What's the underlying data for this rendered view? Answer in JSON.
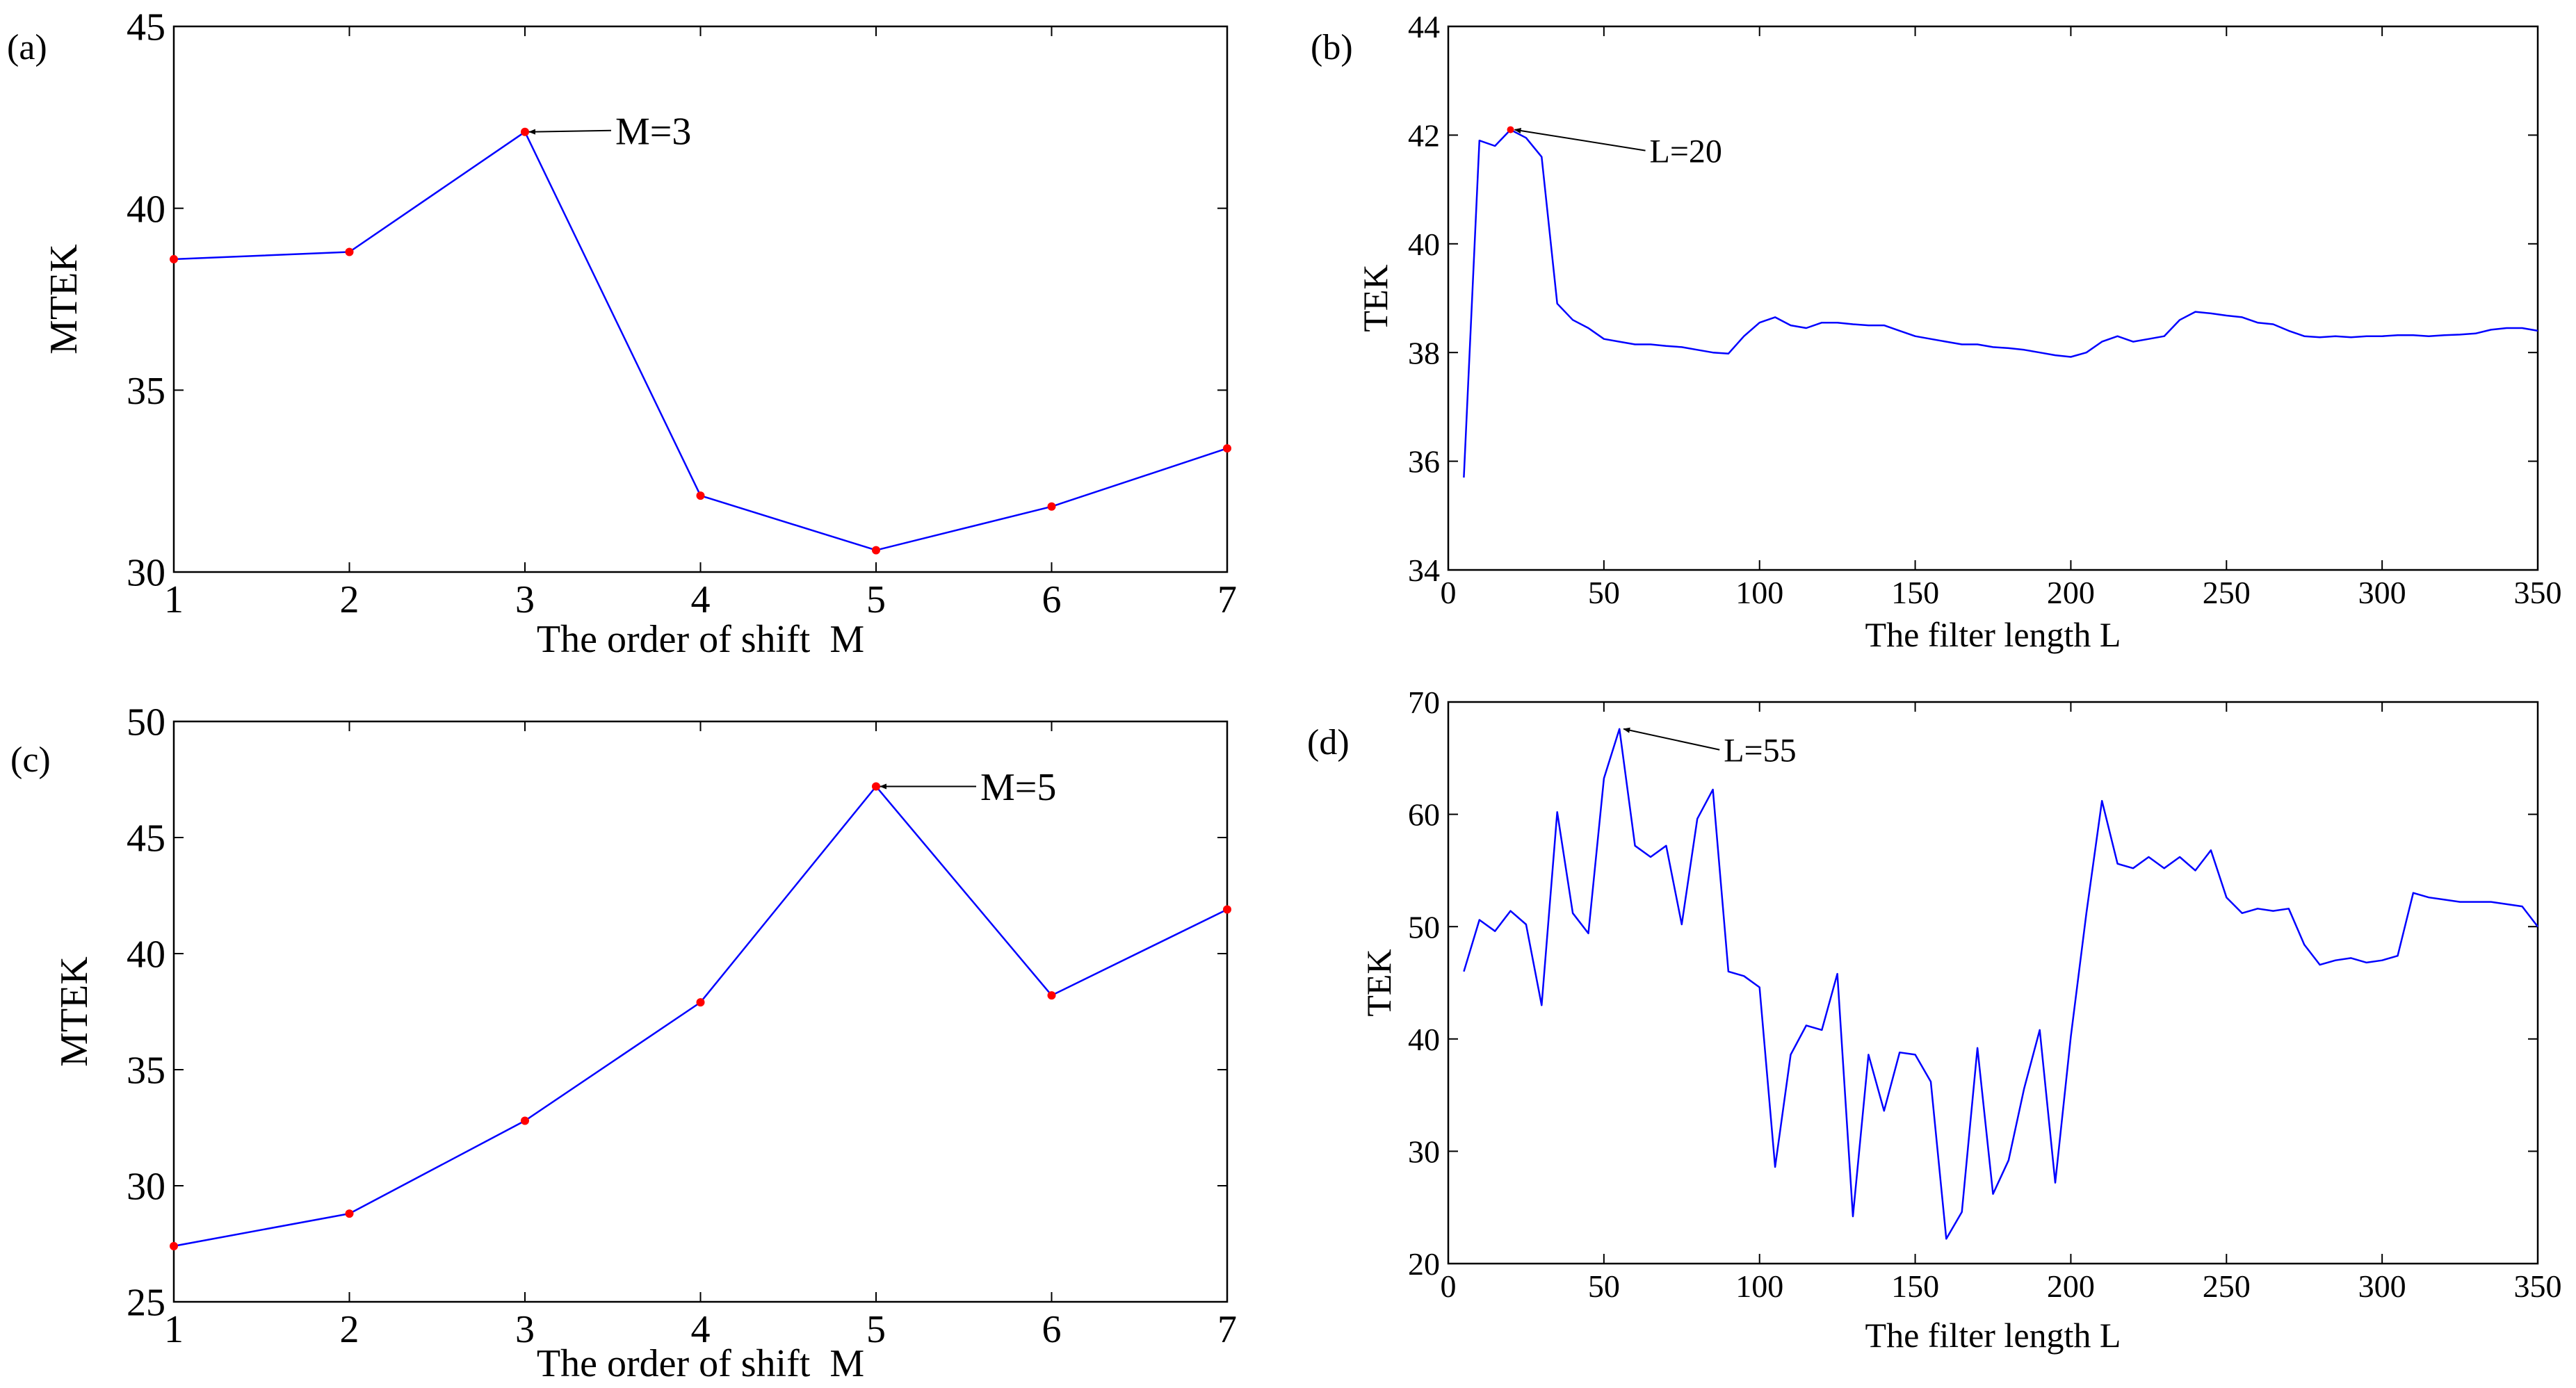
{
  "figure": {
    "panels": [
      {
        "id": "a",
        "label": "(a)"
      },
      {
        "id": "b",
        "label": "(b)"
      },
      {
        "id": "c",
        "label": "(c)"
      },
      {
        "id": "d",
        "label": "(d)"
      }
    ]
  },
  "colors": {
    "line": "#0000ff",
    "marker": "#ff0000",
    "axis": "#000000",
    "annotation": "#000000"
  },
  "chart_data": [
    {
      "id": "a",
      "type": "line",
      "title": "",
      "xlabel": "The order of shift  M",
      "ylabel": "MTEK",
      "xlim": [
        1,
        7
      ],
      "ylim": [
        30,
        45
      ],
      "xticks": [
        1,
        2,
        3,
        4,
        5,
        6,
        7
      ],
      "yticks": [
        30,
        35,
        40,
        45
      ],
      "grid": false,
      "markers": true,
      "series": [
        {
          "name": "MTEK",
          "x": [
            1,
            2,
            3,
            4,
            5,
            6,
            7
          ],
          "y": [
            38.6,
            38.8,
            42.1,
            32.1,
            30.6,
            31.8,
            33.4
          ]
        }
      ],
      "annotation": {
        "text": "M=3",
        "x": 3,
        "y": 42.1
      }
    },
    {
      "id": "b",
      "type": "line",
      "title": "",
      "xlabel": "The filter length L",
      "ylabel": "TEK",
      "xlim": [
        0,
        350
      ],
      "ylim": [
        34,
        44
      ],
      "xticks": [
        0,
        50,
        100,
        150,
        200,
        250,
        300,
        350
      ],
      "yticks": [
        34,
        36,
        38,
        40,
        42,
        44
      ],
      "grid": false,
      "markers": false,
      "series": [
        {
          "name": "TEK",
          "x": [
            5,
            10,
            15,
            20,
            25,
            30,
            35,
            40,
            45,
            50,
            55,
            60,
            65,
            70,
            75,
            80,
            85,
            90,
            95,
            100,
            105,
            110,
            115,
            120,
            125,
            130,
            135,
            140,
            145,
            150,
            155,
            160,
            165,
            170,
            175,
            180,
            185,
            190,
            195,
            200,
            205,
            210,
            215,
            220,
            225,
            230,
            235,
            240,
            245,
            250,
            255,
            260,
            265,
            270,
            275,
            280,
            285,
            290,
            295,
            300,
            305,
            310,
            315,
            320,
            325,
            330,
            335,
            340,
            345,
            350
          ],
          "y": [
            35.7,
            41.9,
            41.8,
            42.1,
            41.95,
            41.6,
            38.9,
            38.6,
            38.45,
            38.25,
            38.2,
            38.15,
            38.15,
            38.12,
            38.1,
            38.05,
            38.0,
            37.98,
            38.3,
            38.55,
            38.65,
            38.5,
            38.45,
            38.55,
            38.55,
            38.52,
            38.5,
            38.5,
            38.4,
            38.3,
            38.25,
            38.2,
            38.15,
            38.15,
            38.1,
            38.08,
            38.05,
            38.0,
            37.95,
            37.92,
            38.0,
            38.2,
            38.3,
            38.2,
            38.25,
            38.3,
            38.6,
            38.75,
            38.72,
            38.68,
            38.65,
            38.55,
            38.52,
            38.4,
            38.3,
            38.28,
            38.3,
            38.28,
            38.3,
            38.3,
            38.32,
            38.32,
            38.3,
            38.32,
            38.33,
            38.35,
            38.42,
            38.45,
            38.45,
            38.4
          ]
        }
      ],
      "annotation": {
        "text": "L=20",
        "x": 20,
        "y": 42.1
      }
    },
    {
      "id": "c",
      "type": "line",
      "title": "",
      "xlabel": "The order of shift  M",
      "ylabel": "MTEK",
      "xlim": [
        1,
        7
      ],
      "ylim": [
        25,
        50
      ],
      "xticks": [
        1,
        2,
        3,
        4,
        5,
        6,
        7
      ],
      "yticks": [
        25,
        30,
        35,
        40,
        45,
        50
      ],
      "grid": false,
      "markers": true,
      "series": [
        {
          "name": "MTEK",
          "x": [
            1,
            2,
            3,
            4,
            5,
            6,
            7
          ],
          "y": [
            27.4,
            28.8,
            32.8,
            37.9,
            47.2,
            38.2,
            41.9
          ]
        }
      ],
      "annotation": {
        "text": "M=5",
        "x": 5,
        "y": 47.2
      }
    },
    {
      "id": "d",
      "type": "line",
      "title": "",
      "xlabel": "The filter length L",
      "ylabel": "TEK",
      "xlim": [
        0,
        350
      ],
      "ylim": [
        20,
        70
      ],
      "xticks": [
        0,
        50,
        100,
        150,
        200,
        250,
        300,
        350
      ],
      "yticks": [
        20,
        30,
        40,
        50,
        60,
        70
      ],
      "grid": false,
      "markers": false,
      "series": [
        {
          "name": "TEK",
          "x": [
            5,
            10,
            15,
            20,
            25,
            30,
            35,
            40,
            45,
            50,
            55,
            60,
            65,
            70,
            75,
            80,
            85,
            90,
            95,
            100,
            105,
            110,
            115,
            120,
            125,
            130,
            135,
            140,
            145,
            150,
            155,
            160,
            165,
            170,
            175,
            180,
            185,
            190,
            195,
            200,
            205,
            210,
            215,
            220,
            225,
            230,
            235,
            240,
            245,
            250,
            255,
            260,
            265,
            270,
            275,
            280,
            285,
            290,
            295,
            300,
            305,
            310,
            315,
            320,
            325,
            330,
            335,
            340,
            345,
            350
          ],
          "y": [
            46,
            50.6,
            49.6,
            51.4,
            50.2,
            43,
            60.2,
            51.2,
            49.4,
            63.2,
            67.6,
            57.2,
            56.2,
            57.2,
            50.2,
            59.6,
            62.2,
            46,
            45.6,
            44.6,
            28.6,
            38.6,
            41.2,
            40.8,
            45.8,
            24.2,
            38.6,
            33.6,
            38.8,
            38.6,
            36.2,
            22.2,
            24.6,
            39.2,
            26.2,
            29.2,
            35.6,
            40.8,
            27.2,
            40.2,
            51.2,
            61.2,
            55.6,
            55.2,
            56.2,
            55.2,
            56.2,
            55,
            56.8,
            52.6,
            51.2,
            51.6,
            51.4,
            51.6,
            48.4,
            46.6,
            47,
            47.2,
            46.8,
            47,
            47.4,
            53,
            52.6,
            52.4,
            52.2,
            52.2,
            52.2,
            52,
            51.8,
            50
          ]
        }
      ],
      "annotation": {
        "text": "L=55",
        "x": 55,
        "y": 67.6
      }
    }
  ]
}
